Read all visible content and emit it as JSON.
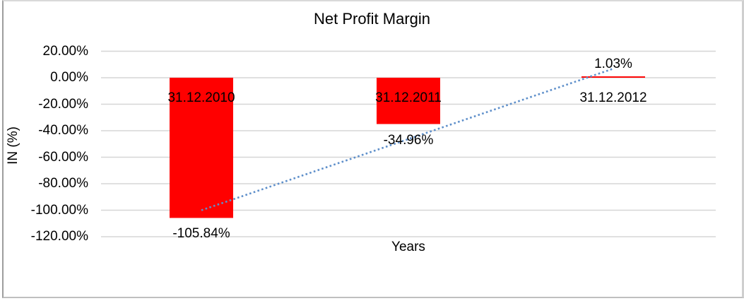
{
  "chart_data": {
    "type": "bar",
    "title": "Net Profit Margin",
    "xlabel": "Years",
    "ylabel": "IN (%)",
    "categories": [
      "31.12.2010",
      "31.12.2011",
      "31.12.2012"
    ],
    "values": [
      -105.84,
      -34.96,
      1.03
    ],
    "data_labels": [
      "-105.84%",
      "-34.96%",
      "1.03%"
    ],
    "yticks": [
      {
        "value": 20,
        "label": "20.00%"
      },
      {
        "value": 0,
        "label": "0.00%"
      },
      {
        "value": -20,
        "label": "-20.00%"
      },
      {
        "value": -40,
        "label": "-40.00%"
      },
      {
        "value": -60,
        "label": "-60.00%"
      },
      {
        "value": -80,
        "label": "-80.00%"
      },
      {
        "value": -100,
        "label": "-100.00%"
      },
      {
        "value": -120,
        "label": "-120.00%"
      }
    ],
    "ylim": [
      -120,
      20
    ],
    "grid": true,
    "legend": false,
    "colors": {
      "bar": "#ff0000",
      "trendline": "#5e8fca",
      "gridline": "#d6d6d6"
    },
    "trendline": {
      "type": "linear",
      "style": "dotted"
    }
  }
}
